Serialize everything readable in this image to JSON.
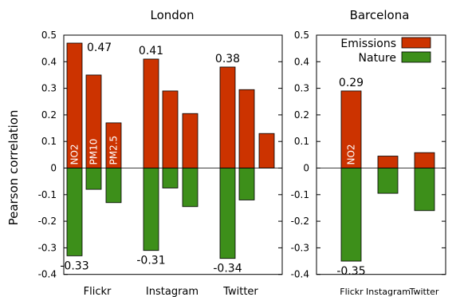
{
  "chart_data": {
    "type": "bar",
    "ylabel": "Pearson correlation",
    "ylim": [
      -0.4,
      0.5
    ],
    "yticks": [
      "0.5",
      "0.4",
      "0.3",
      "0.2",
      "0.1",
      "0",
      "-0.1",
      "-0.2",
      "-0.3",
      "-0.4"
    ],
    "colors": {
      "emissions": "#cc3300",
      "nature": "#3d8f1a"
    },
    "legend": {
      "position": "top-right",
      "entries": [
        "Emissions",
        "Nature"
      ]
    },
    "panels": [
      {
        "title": "London",
        "groups": [
          {
            "label": "Flickr",
            "emissions": [
              0.47,
              0.35,
              0.17
            ],
            "nature": [
              -0.33,
              -0.08,
              -0.13
            ],
            "pollutant_labels": [
              "NO2",
              "PM10",
              "PM2.5"
            ],
            "top_annotation": "0.47",
            "bottom_annotation": "-0.33"
          },
          {
            "label": "Instagram",
            "emissions": [
              0.41,
              0.29,
              0.205
            ],
            "nature": [
              -0.31,
              -0.075,
              -0.145
            ],
            "top_annotation": "0.41",
            "bottom_annotation": "-0.31"
          },
          {
            "label": "Twitter",
            "emissions": [
              0.38,
              0.295,
              0.13
            ],
            "nature": [
              -0.34,
              -0.12,
              null
            ],
            "top_annotation": "0.38",
            "bottom_annotation": "-0.34"
          }
        ]
      },
      {
        "title": "Barcelona",
        "groups": [
          {
            "label": "Flickr",
            "emissions": [
              0.29
            ],
            "nature": [
              -0.35
            ],
            "pollutant_labels": [
              "NO2"
            ],
            "top_annotation": "0.29",
            "bottom_annotation": "-0.35"
          },
          {
            "label": "Instagram",
            "emissions": [
              0.045
            ],
            "nature": [
              -0.095
            ]
          },
          {
            "label": "Twitter",
            "emissions": [
              0.058
            ],
            "nature": [
              -0.16
            ]
          }
        ]
      }
    ]
  }
}
